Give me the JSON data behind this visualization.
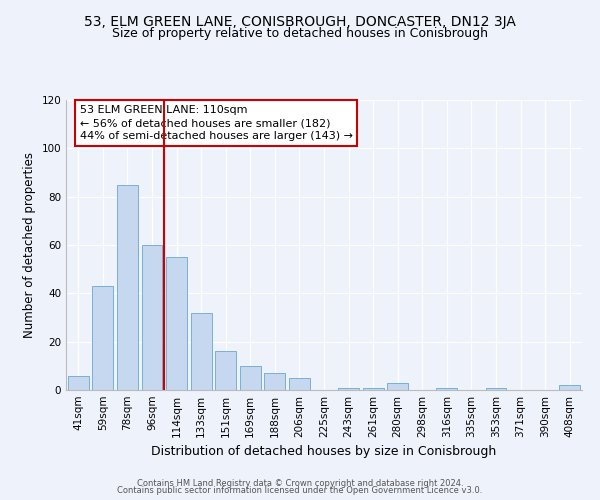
{
  "title": "53, ELM GREEN LANE, CONISBROUGH, DONCASTER, DN12 3JA",
  "subtitle": "Size of property relative to detached houses in Conisbrough",
  "xlabel": "Distribution of detached houses by size in Conisbrough",
  "ylabel": "Number of detached properties",
  "categories": [
    "41sqm",
    "59sqm",
    "78sqm",
    "96sqm",
    "114sqm",
    "133sqm",
    "151sqm",
    "169sqm",
    "188sqm",
    "206sqm",
    "225sqm",
    "243sqm",
    "261sqm",
    "280sqm",
    "298sqm",
    "316sqm",
    "335sqm",
    "353sqm",
    "371sqm",
    "390sqm",
    "408sqm"
  ],
  "values": [
    6,
    43,
    85,
    60,
    55,
    32,
    16,
    10,
    7,
    5,
    0,
    1,
    1,
    3,
    0,
    1,
    0,
    1,
    0,
    0,
    2
  ],
  "bar_color": "#c5d8ef",
  "bar_edge_color": "#7aafd4",
  "vline_x_pos": 3.5,
  "vline_color": "#cc0000",
  "annotation_text": "53 ELM GREEN LANE: 110sqm\n← 56% of detached houses are smaller (182)\n44% of semi-detached houses are larger (143) →",
  "annotation_box_edge": "#cc0000",
  "annotation_box_face": "white",
  "ylim": [
    0,
    120
  ],
  "yticks": [
    0,
    20,
    40,
    60,
    80,
    100,
    120
  ],
  "footer_line1": "Contains HM Land Registry data © Crown copyright and database right 2024.",
  "footer_line2": "Contains public sector information licensed under the Open Government Licence v3.0.",
  "bg_color": "#eef2fb",
  "title_fontsize": 10,
  "subtitle_fontsize": 9,
  "xlabel_fontsize": 9,
  "ylabel_fontsize": 8.5,
  "tick_fontsize": 7.5,
  "footer_fontsize": 6
}
